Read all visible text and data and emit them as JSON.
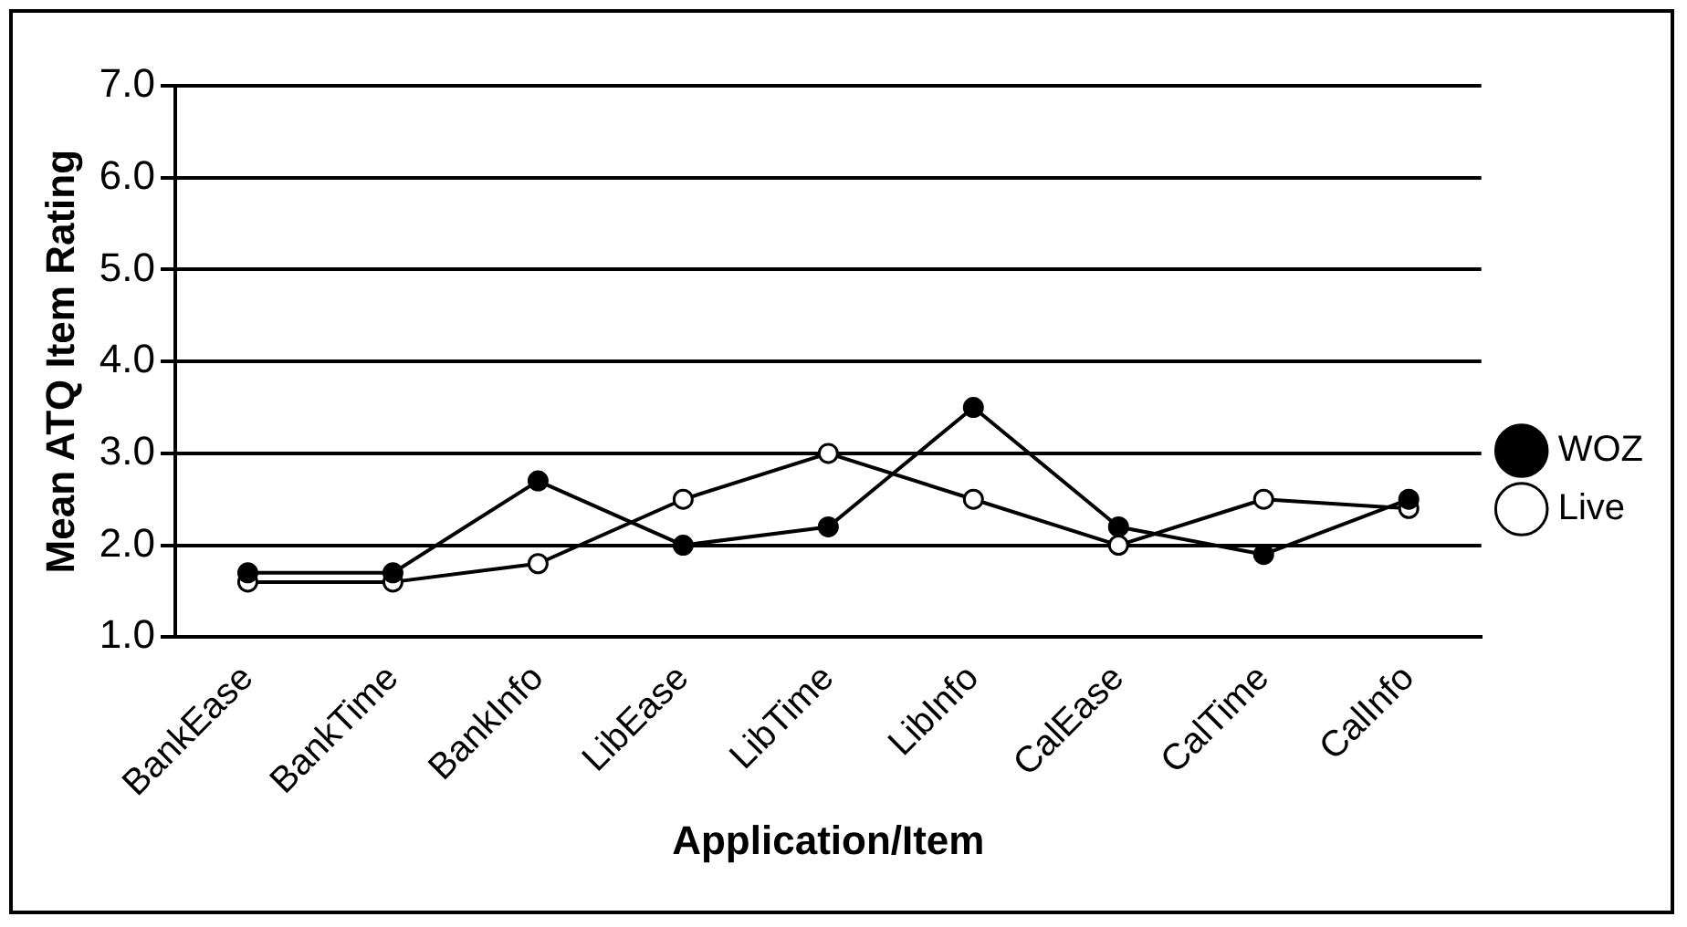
{
  "chart_data": {
    "type": "line",
    "xlabel": "Application/Item",
    "ylabel": "Mean ATQ Item Rating",
    "categories": [
      "BankEase",
      "BankTime",
      "BankInfo",
      "LibEase",
      "LibTime",
      "LibInfo",
      "CalEase",
      "CalTime",
      "CalInfo"
    ],
    "series": [
      {
        "name": "WOZ",
        "color": "#000000",
        "marker": "circle",
        "values": [
          1.7,
          1.7,
          2.7,
          2.0,
          2.2,
          3.5,
          2.2,
          1.9,
          2.5
        ]
      },
      {
        "name": "Live",
        "color": "#000000",
        "marker": "circle",
        "values": [
          1.6,
          1.6,
          1.8,
          2.5,
          3.0,
          2.5,
          2.0,
          2.5,
          2.4
        ]
      }
    ],
    "ylim": [
      1.0,
      7.0
    ],
    "yticks": [
      {
        "value": 1,
        "label": "1.0"
      },
      {
        "value": 2,
        "label": "2.0"
      },
      {
        "value": 3,
        "label": "3.0"
      },
      {
        "value": 4,
        "label": "4.0"
      },
      {
        "value": 5,
        "label": "5.0"
      },
      {
        "value": 6,
        "label": "6.0"
      },
      {
        "value": 7,
        "label": "7.0"
      }
    ],
    "grid": "y",
    "legend": "right",
    "line_style": "solid"
  }
}
